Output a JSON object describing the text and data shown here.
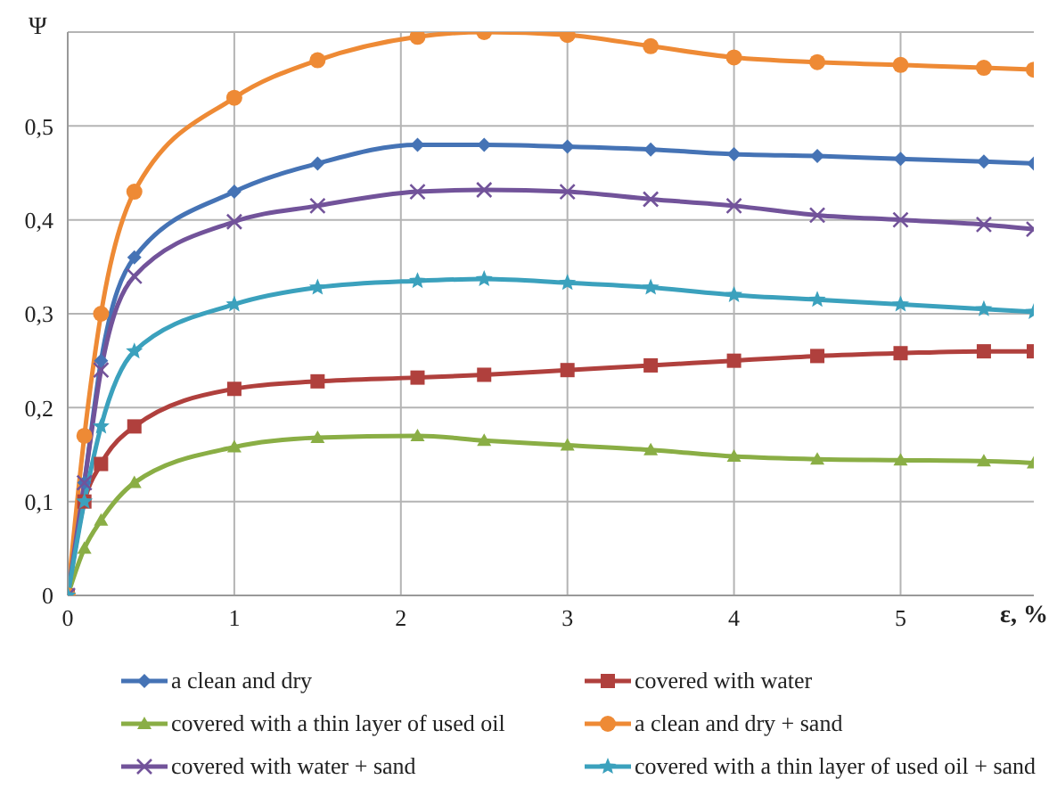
{
  "chart_data": {
    "type": "line",
    "xlabel": "ε, %",
    "ylabel": "Ψ",
    "x": [
      0,
      0.1,
      0.2,
      0.4,
      1,
      1.5,
      2.1,
      2.5,
      3,
      3.5,
      4,
      4.5,
      5,
      5.5,
      5.8
    ],
    "series": [
      {
        "name": "a clean and dry",
        "color": "#4573b5",
        "marker": "diamond",
        "values": [
          0,
          0.12,
          0.25,
          0.36,
          0.43,
          0.46,
          0.48,
          0.48,
          0.478,
          0.475,
          0.47,
          0.468,
          0.465,
          0.462,
          0.46
        ]
      },
      {
        "name": "covered with water",
        "color": "#b0403d",
        "marker": "square",
        "values": [
          0,
          0.1,
          0.14,
          0.18,
          0.22,
          0.228,
          0.232,
          0.235,
          0.24,
          0.245,
          0.25,
          0.255,
          0.258,
          0.26,
          0.26
        ]
      },
      {
        "name": "covered with a thin layer of used oil",
        "color": "#8aae45",
        "marker": "triangle",
        "values": [
          0,
          0.05,
          0.08,
          0.12,
          0.158,
          0.168,
          0.17,
          0.165,
          0.16,
          0.155,
          0.148,
          0.145,
          0.144,
          0.143,
          0.141
        ]
      },
      {
        "name": "a clean and dry + sand",
        "color": "#ee8a35",
        "marker": "circle",
        "values": [
          0,
          0.17,
          0.3,
          0.43,
          0.53,
          0.57,
          0.595,
          0.6,
          0.597,
          0.585,
          0.573,
          0.568,
          0.565,
          0.562,
          0.56
        ]
      },
      {
        "name": "covered with water + sand",
        "color": "#72539a",
        "marker": "cross",
        "values": [
          0,
          0.12,
          0.24,
          0.34,
          0.398,
          0.415,
          0.43,
          0.432,
          0.43,
          0.422,
          0.415,
          0.405,
          0.4,
          0.395,
          0.39
        ]
      },
      {
        "name": "covered with a thin layer of used oil + sand",
        "color": "#3ba1bd",
        "marker": "star",
        "values": [
          0,
          0.1,
          0.18,
          0.26,
          0.31,
          0.328,
          0.335,
          0.337,
          0.333,
          0.328,
          0.32,
          0.315,
          0.31,
          0.305,
          0.302
        ]
      }
    ],
    "xlim": [
      0,
      5.8
    ],
    "xticks": [
      0,
      1,
      2,
      3,
      4,
      5
    ],
    "ylim": [
      0,
      0.6
    ],
    "yticks": [
      0,
      {
        "value": 0.1,
        "label": "0,1"
      },
      {
        "value": 0.2,
        "label": "0,2"
      },
      {
        "value": 0.3,
        "label": "0,3"
      },
      {
        "value": 0.4,
        "label": "0,4"
      },
      {
        "value": 0.5,
        "label": "0,5"
      },
      {
        "value": 0.6,
        "label": null
      }
    ],
    "grid": true,
    "legend": "bottom"
  }
}
